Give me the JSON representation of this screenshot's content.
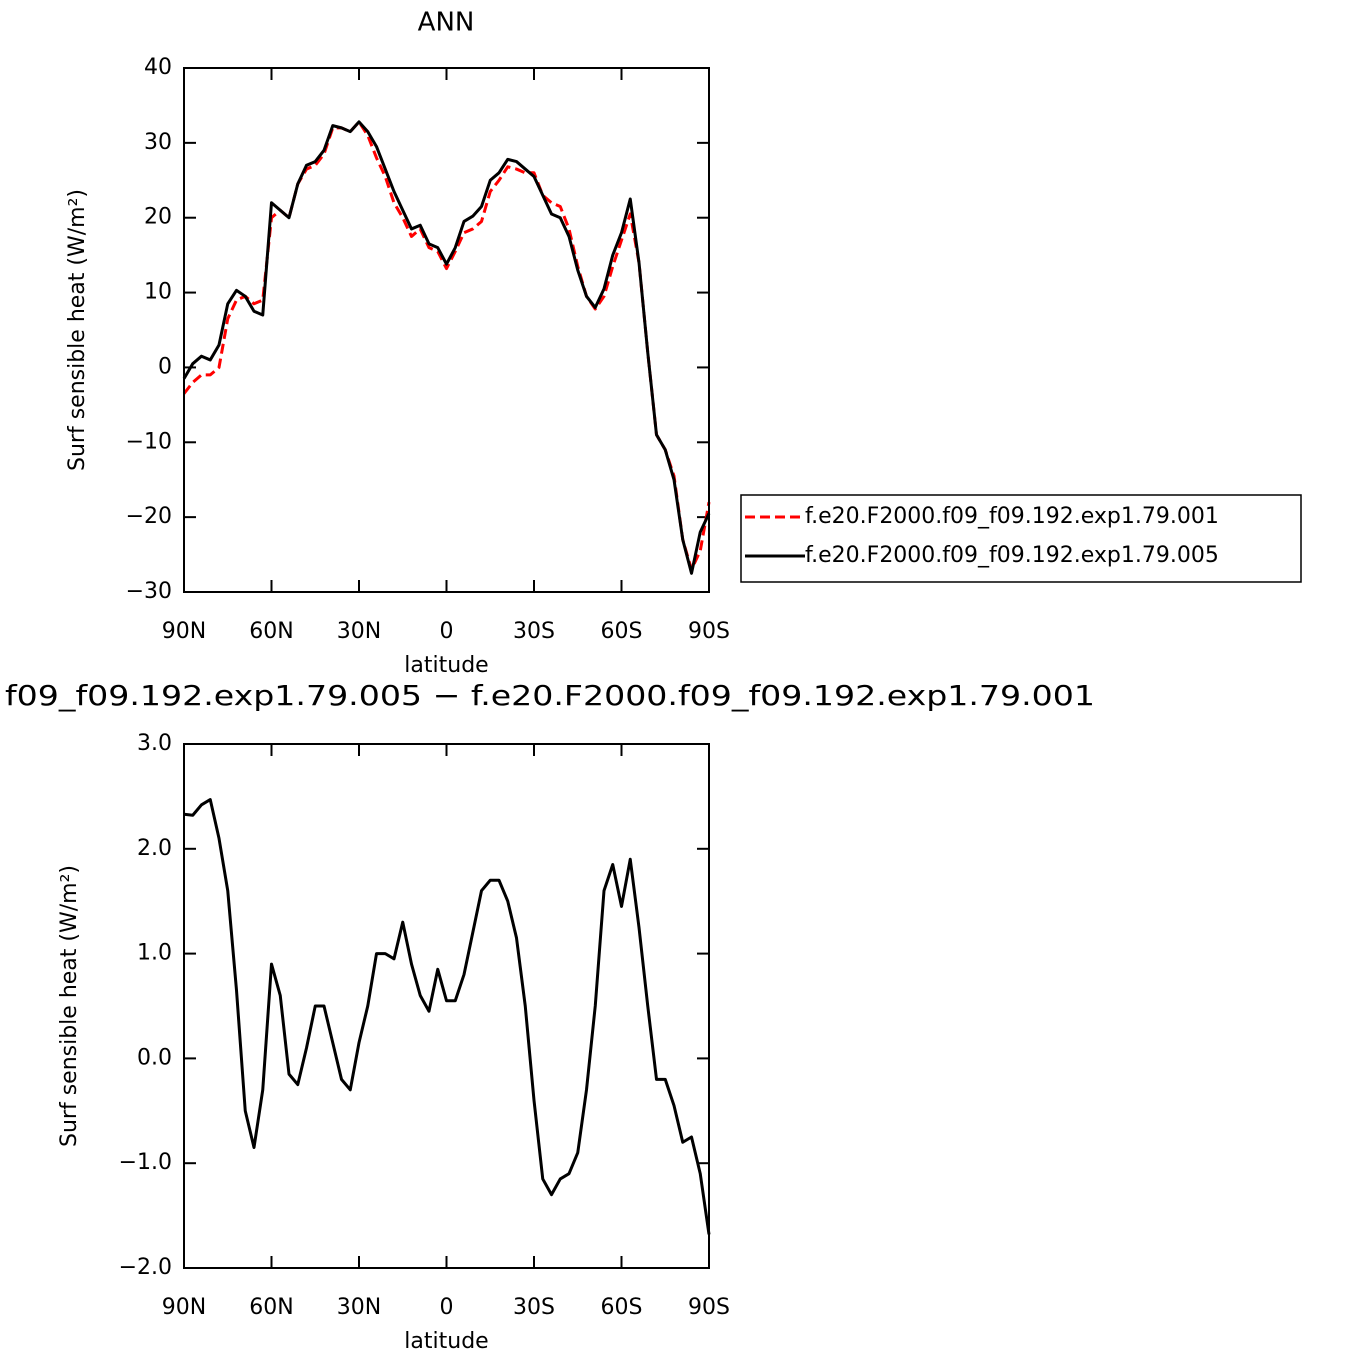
{
  "chart_data": [
    {
      "type": "line",
      "title": "ANN",
      "xlabel": "latitude",
      "ylabel": "Surf sensible heat (W/m²)",
      "x": [
        90,
        87,
        84,
        81,
        78,
        75,
        72,
        69,
        66,
        63,
        60,
        57,
        54,
        51,
        48,
        45,
        42,
        39,
        36,
        33,
        30,
        27,
        24,
        21,
        18,
        15,
        12,
        9,
        6,
        3,
        0,
        -3,
        -6,
        -9,
        -12,
        -15,
        -18,
        -21,
        -24,
        -27,
        -30,
        -33,
        -36,
        -39,
        -42,
        -45,
        -48,
        -51,
        -54,
        -57,
        -60,
        -63,
        -66,
        -69,
        -72,
        -75,
        -78,
        -81,
        -84,
        -87,
        -90
      ],
      "series": [
        {
          "name": "f.e20.F2000.f09_f09.192.exp1.79.001",
          "color": "#ff0000",
          "dashed": true,
          "values": [
            -3.5,
            -2,
            -1,
            -1,
            0,
            6.5,
            9,
            9.5,
            8.5,
            9,
            20,
            21,
            20,
            24.5,
            26.5,
            27,
            28.5,
            32,
            32,
            31.5,
            32.8,
            31,
            28,
            25.5,
            22,
            20,
            17.5,
            18.5,
            16,
            15.5,
            13.2,
            15.5,
            18,
            18.5,
            19.5,
            23.5,
            25,
            26.8,
            26.5,
            26,
            26,
            23,
            22,
            21.5,
            18.5,
            13.5,
            9.5,
            7.8,
            9.5,
            13.5,
            17,
            20.5,
            14,
            2,
            -9,
            -11,
            -14.5,
            -23,
            -27,
            -24.5,
            -18
          ]
        },
        {
          "name": "f.e20.F2000.f09_f09.192.exp1.79.005",
          "color": "#000000",
          "dashed": false,
          "values": [
            -1.5,
            0.5,
            1.5,
            1,
            3,
            8.5,
            10.3,
            9.5,
            7.5,
            7,
            22,
            21,
            20,
            24.5,
            27,
            27.5,
            29,
            32.3,
            32,
            31.5,
            32.8,
            31.5,
            29.5,
            26.5,
            23.5,
            21,
            18.5,
            19,
            16.5,
            16,
            13.8,
            16,
            19.5,
            20.2,
            21.5,
            25,
            26,
            27.8,
            27.5,
            26.5,
            25.5,
            23,
            20.5,
            20,
            17.5,
            13,
            9.5,
            8,
            10.5,
            15,
            18,
            22.5,
            14,
            2,
            -9,
            -11,
            -15,
            -23,
            -27.5,
            -22,
            -19.5
          ]
        }
      ],
      "xlim": [
        90,
        -90
      ],
      "xticks": [
        {
          "value": 90,
          "label": "90N"
        },
        {
          "value": 60,
          "label": "60N"
        },
        {
          "value": 30,
          "label": "30N"
        },
        0,
        {
          "value": -30,
          "label": "30S"
        },
        {
          "value": -60,
          "label": "60S"
        },
        {
          "value": -90,
          "label": "90S"
        }
      ],
      "ylim": [
        -30,
        40
      ],
      "yticks": [
        {
          "value": -30,
          "label": "−30"
        },
        {
          "value": -20,
          "label": "−20"
        },
        {
          "value": -10,
          "label": "−10"
        },
        0,
        10,
        20,
        30,
        40
      ],
      "legend": "right"
    },
    {
      "type": "line",
      "title": "f09_f09.192.exp1.79.005 − f.e20.F2000.f09_f09.192.exp1.79.001",
      "xlabel": "latitude",
      "ylabel": "Surf sensible heat (W/m²)",
      "x": [
        90,
        87,
        84,
        81,
        78,
        75,
        72,
        69,
        66,
        63,
        60,
        57,
        54,
        51,
        48,
        45,
        42,
        39,
        36,
        33,
        30,
        27,
        24,
        21,
        18,
        15,
        12,
        9,
        6,
        3,
        0,
        -3,
        -6,
        -9,
        -12,
        -15,
        -18,
        -21,
        -24,
        -27,
        -30,
        -33,
        -36,
        -39,
        -42,
        -45,
        -48,
        -51,
        -54,
        -57,
        -60,
        -63,
        -66,
        -69,
        -72,
        -75,
        -78,
        -81,
        -84,
        -87,
        -90
      ],
      "values": [
        2.33,
        2.32,
        2.42,
        2.47,
        2.1,
        1.6,
        0.65,
        -0.5,
        -0.85,
        -0.3,
        0.9,
        0.6,
        -0.15,
        -0.25,
        0.1,
        0.5,
        0.5,
        0.15,
        -0.2,
        -0.3,
        0.15,
        0.5,
        1.0,
        1.0,
        0.95,
        1.3,
        0.9,
        0.6,
        0.45,
        0.85,
        0.55,
        0.55,
        0.8,
        1.2,
        1.6,
        1.7,
        1.7,
        1.5,
        1.15,
        0.5,
        -0.4,
        -1.15,
        -1.3,
        -1.15,
        -1.1,
        -0.9,
        -0.3,
        0.5,
        1.6,
        1.85,
        1.45,
        1.9,
        1.25,
        0.5,
        -0.2,
        -0.2,
        -0.45,
        -0.8,
        -0.75,
        -1.1,
        -1.68
      ],
      "color": "#000000",
      "xlim": [
        90,
        -90
      ],
      "xticks": [
        {
          "value": 90,
          "label": "90N"
        },
        {
          "value": 60,
          "label": "60N"
        },
        {
          "value": 30,
          "label": "30N"
        },
        0,
        {
          "value": -30,
          "label": "30S"
        },
        {
          "value": -60,
          "label": "60S"
        },
        {
          "value": -90,
          "label": "90S"
        }
      ],
      "ylim": [
        -2,
        3
      ],
      "yticks": [
        {
          "value": -2,
          "label": "−2.0"
        },
        {
          "value": -1,
          "label": "−1.0"
        },
        {
          "value": 0,
          "label": "0.0"
        },
        {
          "value": 1,
          "label": "1.0"
        },
        {
          "value": 2,
          "label": "2.0"
        },
        {
          "value": 3,
          "label": "3.0"
        }
      ]
    }
  ]
}
